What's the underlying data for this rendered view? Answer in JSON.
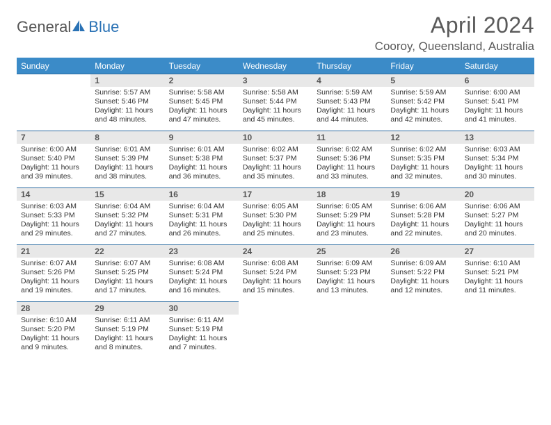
{
  "logo": {
    "text1": "General",
    "text2": "Blue"
  },
  "title": "April 2024",
  "location": "Cooroy, Queensland, Australia",
  "colors": {
    "header_bg": "#3b8bc8",
    "header_text": "#ffffff",
    "rule": "#2a6aa0",
    "daynum_bg": "#e8e8e8",
    "body_text": "#333333",
    "title_text": "#5a5a5a",
    "logo_gray": "#555555",
    "logo_blue": "#2a72b5"
  },
  "weekdays": [
    "Sunday",
    "Monday",
    "Tuesday",
    "Wednesday",
    "Thursday",
    "Friday",
    "Saturday"
  ],
  "weeks": [
    [
      null,
      {
        "n": "1",
        "sr": "Sunrise: 5:57 AM",
        "ss": "Sunset: 5:46 PM",
        "d1": "Daylight: 11 hours",
        "d2": "and 48 minutes."
      },
      {
        "n": "2",
        "sr": "Sunrise: 5:58 AM",
        "ss": "Sunset: 5:45 PM",
        "d1": "Daylight: 11 hours",
        "d2": "and 47 minutes."
      },
      {
        "n": "3",
        "sr": "Sunrise: 5:58 AM",
        "ss": "Sunset: 5:44 PM",
        "d1": "Daylight: 11 hours",
        "d2": "and 45 minutes."
      },
      {
        "n": "4",
        "sr": "Sunrise: 5:59 AM",
        "ss": "Sunset: 5:43 PM",
        "d1": "Daylight: 11 hours",
        "d2": "and 44 minutes."
      },
      {
        "n": "5",
        "sr": "Sunrise: 5:59 AM",
        "ss": "Sunset: 5:42 PM",
        "d1": "Daylight: 11 hours",
        "d2": "and 42 minutes."
      },
      {
        "n": "6",
        "sr": "Sunrise: 6:00 AM",
        "ss": "Sunset: 5:41 PM",
        "d1": "Daylight: 11 hours",
        "d2": "and 41 minutes."
      }
    ],
    [
      {
        "n": "7",
        "sr": "Sunrise: 6:00 AM",
        "ss": "Sunset: 5:40 PM",
        "d1": "Daylight: 11 hours",
        "d2": "and 39 minutes."
      },
      {
        "n": "8",
        "sr": "Sunrise: 6:01 AM",
        "ss": "Sunset: 5:39 PM",
        "d1": "Daylight: 11 hours",
        "d2": "and 38 minutes."
      },
      {
        "n": "9",
        "sr": "Sunrise: 6:01 AM",
        "ss": "Sunset: 5:38 PM",
        "d1": "Daylight: 11 hours",
        "d2": "and 36 minutes."
      },
      {
        "n": "10",
        "sr": "Sunrise: 6:02 AM",
        "ss": "Sunset: 5:37 PM",
        "d1": "Daylight: 11 hours",
        "d2": "and 35 minutes."
      },
      {
        "n": "11",
        "sr": "Sunrise: 6:02 AM",
        "ss": "Sunset: 5:36 PM",
        "d1": "Daylight: 11 hours",
        "d2": "and 33 minutes."
      },
      {
        "n": "12",
        "sr": "Sunrise: 6:02 AM",
        "ss": "Sunset: 5:35 PM",
        "d1": "Daylight: 11 hours",
        "d2": "and 32 minutes."
      },
      {
        "n": "13",
        "sr": "Sunrise: 6:03 AM",
        "ss": "Sunset: 5:34 PM",
        "d1": "Daylight: 11 hours",
        "d2": "and 30 minutes."
      }
    ],
    [
      {
        "n": "14",
        "sr": "Sunrise: 6:03 AM",
        "ss": "Sunset: 5:33 PM",
        "d1": "Daylight: 11 hours",
        "d2": "and 29 minutes."
      },
      {
        "n": "15",
        "sr": "Sunrise: 6:04 AM",
        "ss": "Sunset: 5:32 PM",
        "d1": "Daylight: 11 hours",
        "d2": "and 27 minutes."
      },
      {
        "n": "16",
        "sr": "Sunrise: 6:04 AM",
        "ss": "Sunset: 5:31 PM",
        "d1": "Daylight: 11 hours",
        "d2": "and 26 minutes."
      },
      {
        "n": "17",
        "sr": "Sunrise: 6:05 AM",
        "ss": "Sunset: 5:30 PM",
        "d1": "Daylight: 11 hours",
        "d2": "and 25 minutes."
      },
      {
        "n": "18",
        "sr": "Sunrise: 6:05 AM",
        "ss": "Sunset: 5:29 PM",
        "d1": "Daylight: 11 hours",
        "d2": "and 23 minutes."
      },
      {
        "n": "19",
        "sr": "Sunrise: 6:06 AM",
        "ss": "Sunset: 5:28 PM",
        "d1": "Daylight: 11 hours",
        "d2": "and 22 minutes."
      },
      {
        "n": "20",
        "sr": "Sunrise: 6:06 AM",
        "ss": "Sunset: 5:27 PM",
        "d1": "Daylight: 11 hours",
        "d2": "and 20 minutes."
      }
    ],
    [
      {
        "n": "21",
        "sr": "Sunrise: 6:07 AM",
        "ss": "Sunset: 5:26 PM",
        "d1": "Daylight: 11 hours",
        "d2": "and 19 minutes."
      },
      {
        "n": "22",
        "sr": "Sunrise: 6:07 AM",
        "ss": "Sunset: 5:25 PM",
        "d1": "Daylight: 11 hours",
        "d2": "and 17 minutes."
      },
      {
        "n": "23",
        "sr": "Sunrise: 6:08 AM",
        "ss": "Sunset: 5:24 PM",
        "d1": "Daylight: 11 hours",
        "d2": "and 16 minutes."
      },
      {
        "n": "24",
        "sr": "Sunrise: 6:08 AM",
        "ss": "Sunset: 5:24 PM",
        "d1": "Daylight: 11 hours",
        "d2": "and 15 minutes."
      },
      {
        "n": "25",
        "sr": "Sunrise: 6:09 AM",
        "ss": "Sunset: 5:23 PM",
        "d1": "Daylight: 11 hours",
        "d2": "and 13 minutes."
      },
      {
        "n": "26",
        "sr": "Sunrise: 6:09 AM",
        "ss": "Sunset: 5:22 PM",
        "d1": "Daylight: 11 hours",
        "d2": "and 12 minutes."
      },
      {
        "n": "27",
        "sr": "Sunrise: 6:10 AM",
        "ss": "Sunset: 5:21 PM",
        "d1": "Daylight: 11 hours",
        "d2": "and 11 minutes."
      }
    ],
    [
      {
        "n": "28",
        "sr": "Sunrise: 6:10 AM",
        "ss": "Sunset: 5:20 PM",
        "d1": "Daylight: 11 hours",
        "d2": "and 9 minutes."
      },
      {
        "n": "29",
        "sr": "Sunrise: 6:11 AM",
        "ss": "Sunset: 5:19 PM",
        "d1": "Daylight: 11 hours",
        "d2": "and 8 minutes."
      },
      {
        "n": "30",
        "sr": "Sunrise: 6:11 AM",
        "ss": "Sunset: 5:19 PM",
        "d1": "Daylight: 11 hours",
        "d2": "and 7 minutes."
      },
      null,
      null,
      null,
      null
    ]
  ]
}
